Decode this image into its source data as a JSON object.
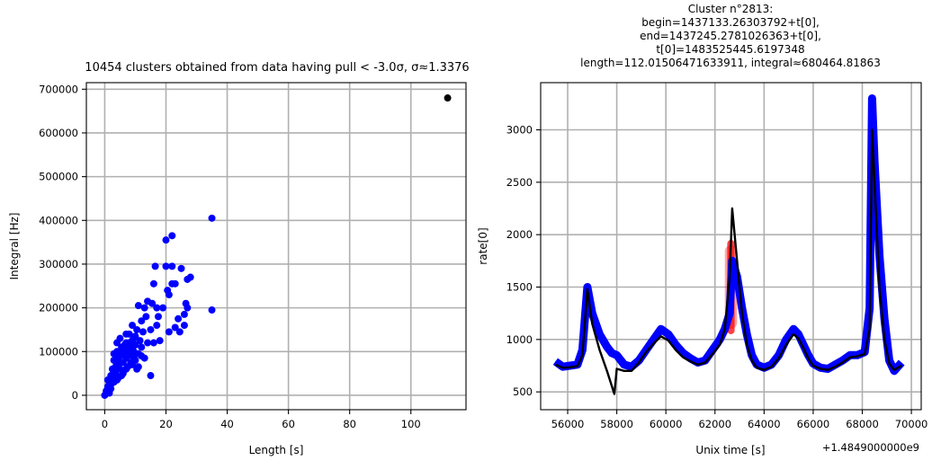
{
  "chart_data": [
    {
      "type": "scatter",
      "title": "10454 clusters obtained from data having pull < -3.0σ, σ≈1.3376",
      "xlabel": "Length [s]",
      "ylabel": "Integral [Hz]",
      "xlim": [
        -6,
        118
      ],
      "ylim": [
        -33000,
        715000
      ],
      "xticks": [
        0,
        20,
        40,
        60,
        80,
        100
      ],
      "yticks": [
        0,
        100000,
        200000,
        300000,
        400000,
        500000,
        600000,
        700000
      ],
      "grid": true,
      "colors": {
        "points": "#0000ff",
        "highlight": "#000000"
      },
      "series": [
        {
          "color": "#0000ff",
          "points": [
            [
              0,
              0
            ],
            [
              0.5,
              10000
            ],
            [
              1,
              20000
            ],
            [
              1,
              35000
            ],
            [
              1.5,
              5000
            ],
            [
              2,
              25000
            ],
            [
              2,
              45000
            ],
            [
              2.5,
              60000
            ],
            [
              3,
              30000
            ],
            [
              3,
              80000
            ],
            [
              3.5,
              50000
            ],
            [
              4,
              70000
            ],
            [
              4,
              100000
            ],
            [
              4.5,
              40000
            ],
            [
              5,
              90000
            ],
            [
              5,
              60000
            ],
            [
              5.5,
              110000
            ],
            [
              6,
              75000
            ],
            [
              6,
              50000
            ],
            [
              6.5,
              95000
            ],
            [
              7,
              120000
            ],
            [
              7,
              85000
            ],
            [
              7.5,
              65000
            ],
            [
              8,
              100000
            ],
            [
              8,
              140000
            ],
            [
              8.5,
              110000
            ],
            [
              9,
              90000
            ],
            [
              9,
              160000
            ],
            [
              9.5,
              130000
            ],
            [
              10,
              115000
            ],
            [
              10,
              80000
            ],
            [
              10.5,
              150000
            ],
            [
              11,
              205000
            ],
            [
              11,
              95000
            ],
            [
              11.5,
              125000
            ],
            [
              12,
              170000
            ],
            [
              12,
              110000
            ],
            [
              12.5,
              145000
            ],
            [
              13,
              200000
            ],
            [
              13,
              85000
            ],
            [
              13.5,
              180000
            ],
            [
              14,
              215000
            ],
            [
              14,
              120000
            ],
            [
              15,
              150000
            ],
            [
              15,
              45000
            ],
            [
              15.5,
              210000
            ],
            [
              16,
              255000
            ],
            [
              16,
              120000
            ],
            [
              16.5,
              295000
            ],
            [
              17,
              160000
            ],
            [
              17,
              200000
            ],
            [
              17.5,
              180000
            ],
            [
              18,
              125000
            ],
            [
              19,
              200000
            ],
            [
              20,
              355000
            ],
            [
              20,
              295000
            ],
            [
              20.5,
              240000
            ],
            [
              21,
              145000
            ],
            [
              21,
              230000
            ],
            [
              22,
              365000
            ],
            [
              22,
              295000
            ],
            [
              22,
              255000
            ],
            [
              23,
              255000
            ],
            [
              23,
              155000
            ],
            [
              24,
              175000
            ],
            [
              24.5,
              145000
            ],
            [
              25,
              290000
            ],
            [
              26,
              185000
            ],
            [
              26,
              160000
            ],
            [
              26.5,
              210000
            ],
            [
              27,
              265000
            ],
            [
              27,
              200000
            ],
            [
              28,
              270000
            ],
            [
              35,
              405000
            ],
            [
              35,
              195000
            ],
            [
              2,
              15000
            ],
            [
              3,
              55000
            ],
            [
              4,
              35000
            ],
            [
              5,
              75000
            ],
            [
              6,
              105000
            ],
            [
              7,
              60000
            ],
            [
              8,
              120000
            ],
            [
              9,
              70000
            ],
            [
              10,
              135000
            ],
            [
              11,
              65000
            ],
            [
              12,
              90000
            ],
            [
              1.5,
              30000
            ],
            [
              2.5,
              40000
            ],
            [
              3.5,
              65000
            ],
            [
              4.5,
              85000
            ],
            [
              5.5,
              45000
            ],
            [
              6.5,
              115000
            ],
            [
              7.5,
              90000
            ],
            [
              8.5,
              75000
            ],
            [
              9.5,
              100000
            ],
            [
              10.5,
              60000
            ],
            [
              3,
              95000
            ],
            [
              4,
              120000
            ],
            [
              5,
              130000
            ],
            [
              6,
              100000
            ],
            [
              7,
              140000
            ],
            [
              8,
              105000
            ],
            [
              9,
              125000
            ],
            [
              10,
              95000
            ]
          ]
        },
        {
          "color": "#000000",
          "points": [
            [
              112,
              680000
            ]
          ]
        }
      ]
    },
    {
      "type": "line",
      "title": [
        "Cluster n°2813:",
        "begin=1437133.26303792+t[0],",
        "end=1437245.2781026363+t[0],",
        "t[0]=1483525445.6197348",
        "length=112.01506471633911, integral≈680464.81863"
      ],
      "xlabel": "Unix time [s]",
      "ylabel": "rate[0]",
      "offset_text": "+1.4849000000e9",
      "xlim": [
        54900,
        70400
      ],
      "ylim": [
        330,
        3450
      ],
      "xticks": [
        56000,
        58000,
        60000,
        62000,
        64000,
        66000,
        68000,
        70000
      ],
      "yticks": [
        500,
        1000,
        1500,
        2000,
        2500,
        3000
      ],
      "grid": true,
      "series": [
        {
          "color": "#0000ff",
          "x": [
            55500,
            55800,
            56100,
            56400,
            56600,
            56800,
            57000,
            57300,
            57600,
            57800,
            58000,
            58300,
            58600,
            58900,
            59200,
            59500,
            59800,
            60100,
            60400,
            60700,
            61000,
            61300,
            61600,
            61900,
            62200,
            62400,
            62600,
            62700,
            62900,
            63100,
            63300,
            63500,
            63700,
            64000,
            64300,
            64600,
            64900,
            65200,
            65400,
            65600,
            65800,
            66000,
            66300,
            66600,
            66900,
            67200,
            67500,
            67800,
            68100,
            68300,
            68400,
            68500,
            68700,
            68900,
            69100,
            69300,
            69600
          ],
          "y": [
            790,
            740,
            750,
            760,
            900,
            1500,
            1250,
            1050,
            930,
            870,
            850,
            760,
            740,
            800,
            900,
            1000,
            1100,
            1050,
            950,
            870,
            820,
            780,
            800,
            900,
            1000,
            1100,
            1250,
            1750,
            1600,
            1300,
            1050,
            850,
            760,
            730,
            760,
            850,
            1000,
            1100,
            1050,
            950,
            850,
            770,
            730,
            720,
            760,
            800,
            850,
            850,
            880,
            1300,
            3300,
            2700,
            1800,
            1200,
            800,
            700,
            780
          ]
        },
        {
          "color": "#000000",
          "x": [
            55500,
            55800,
            56100,
            56400,
            56600,
            56800,
            57000,
            57300,
            57600,
            57900,
            58000,
            58300,
            58600,
            58900,
            59200,
            59500,
            59800,
            60100,
            60400,
            60700,
            61000,
            61300,
            61600,
            61900,
            62200,
            62400,
            62600,
            62700,
            62900,
            63100,
            63300,
            63500,
            63700,
            64000,
            64300,
            64600,
            64900,
            65200,
            65400,
            65600,
            65800,
            66000,
            66300,
            66600,
            66900,
            67200,
            67500,
            67800,
            68100,
            68300,
            68400,
            68500,
            68700,
            68900,
            69100,
            69300,
            69600
          ],
          "y": [
            760,
            730,
            735,
            745,
            850,
            1480,
            1150,
            900,
            700,
            480,
            720,
            700,
            700,
            780,
            880,
            960,
            1030,
            990,
            900,
            830,
            790,
            760,
            780,
            860,
            950,
            1100,
            1600,
            2250,
            1750,
            1250,
            950,
            800,
            730,
            710,
            740,
            820,
            950,
            1050,
            1010,
            920,
            820,
            750,
            720,
            710,
            740,
            780,
            830,
            840,
            860,
            1100,
            3000,
            2500,
            1500,
            1000,
            770,
            710,
            750
          ]
        },
        {
          "color": "#ff0000",
          "type": "highlight-cluster",
          "x_range": [
            62400,
            62900
          ],
          "y_range": [
            1050,
            1950
          ]
        }
      ]
    }
  ]
}
